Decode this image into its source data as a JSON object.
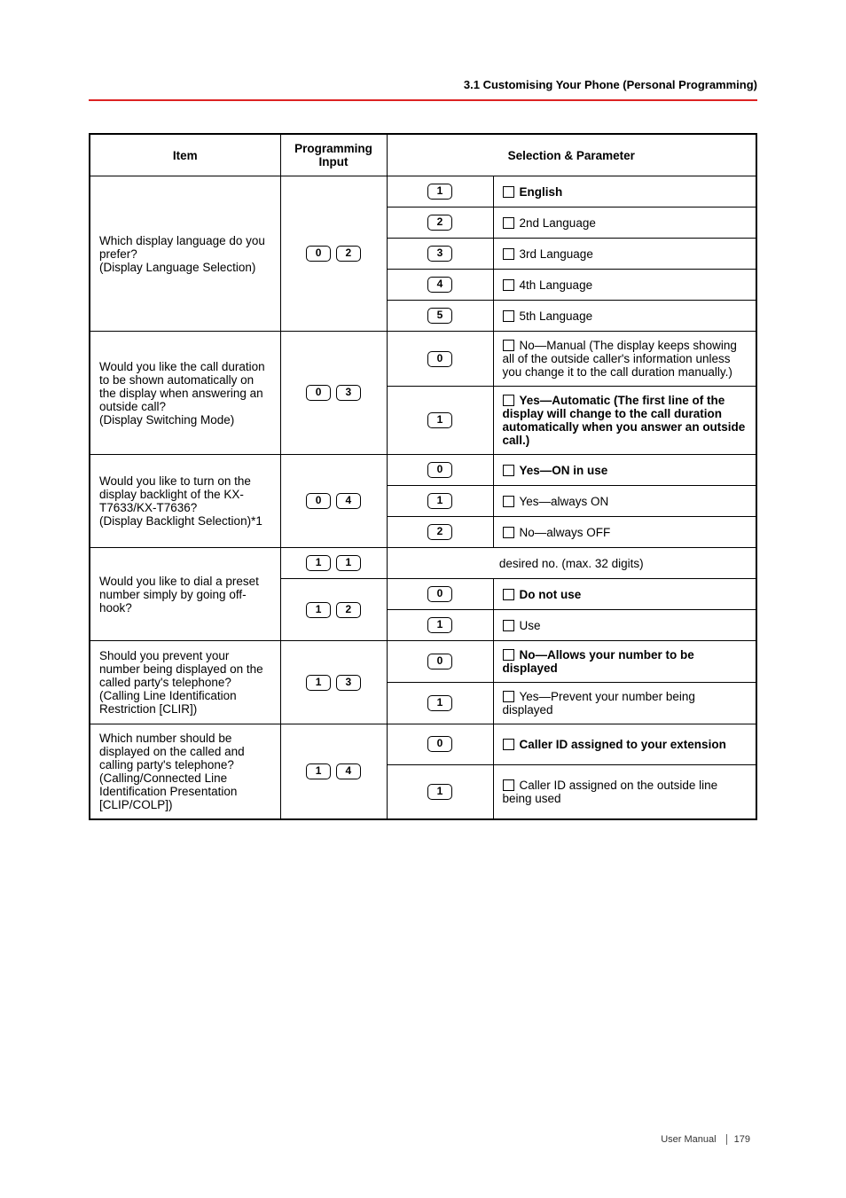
{
  "header": "3.1 Customising Your Phone (Personal Programming)",
  "columns": {
    "item": "Item",
    "prog": "Programming Input",
    "sel": "Selection & Parameter"
  },
  "rows": [
    {
      "item": "Which display language do you prefer?\n(Display Language Selection)",
      "prog": [
        "0",
        "2"
      ],
      "options": [
        {
          "key": [
            "1"
          ],
          "label": "English",
          "bold": true
        },
        {
          "key": [
            "2"
          ],
          "label": "2nd Language"
        },
        {
          "key": [
            "3"
          ],
          "label": "3rd Language"
        },
        {
          "key": [
            "4"
          ],
          "label": "4th Language"
        },
        {
          "key": [
            "5"
          ],
          "label": "5th Language"
        }
      ]
    },
    {
      "item": "Would you like the call duration to be shown automatically on the display when answering an outside call?\n(Display Switching Mode)",
      "prog": [
        "0",
        "3"
      ],
      "options": [
        {
          "key": [
            "0"
          ],
          "label": "No—Manual (The display keeps showing all of the outside caller's information unless you change it to the call duration manually.)"
        },
        {
          "key": [
            "1"
          ],
          "label": "Yes—Automatic (The first line of the display will change to the call duration automatically when you answer an outside call.)",
          "bold": true
        }
      ]
    },
    {
      "item": "Would you like to turn on the display backlight of the KX-T7633/KX-T7636?\n(Display Backlight Selection)*1",
      "prog": [
        "0",
        "4"
      ],
      "options": [
        {
          "key": [
            "0"
          ],
          "label": "Yes—ON in use",
          "bold": true
        },
        {
          "key": [
            "1"
          ],
          "label": "Yes—always ON"
        },
        {
          "key": [
            "2"
          ],
          "label": "No—always OFF"
        }
      ]
    },
    {
      "item": "Would you like to dial a preset number simply by going off-hook?",
      "subrows": [
        {
          "prog": [
            "1",
            "1"
          ],
          "centered": "desired no. (max. 32 digits)"
        },
        {
          "prog": [
            "1",
            "2"
          ],
          "options": [
            {
              "key": [
                "0"
              ],
              "label": "Do not use",
              "bold": true
            },
            {
              "key": [
                "1"
              ],
              "label": "Use"
            }
          ]
        }
      ]
    },
    {
      "item": "Should you prevent your number being displayed on the called party's telephone?\n(Calling Line Identification Restriction [CLIR])",
      "prog": [
        "1",
        "3"
      ],
      "options": [
        {
          "key": [
            "0"
          ],
          "label": "No—Allows your number to be displayed",
          "bold": true
        },
        {
          "key": [
            "1"
          ],
          "label": "Yes—Prevent your number being displayed"
        }
      ]
    },
    {
      "item": "Which number should be displayed on the called and calling party's telephone?\n(Calling/Connected Line Identification Presentation [CLIP/COLP])",
      "prog": [
        "1",
        "4"
      ],
      "options": [
        {
          "key": [
            "0"
          ],
          "label": "Caller ID assigned to your extension",
          "bold": true
        },
        {
          "key": [
            "1"
          ],
          "label": "Caller ID assigned on the outside line being used"
        }
      ]
    }
  ],
  "footer": {
    "label": "User Manual",
    "page": "179"
  }
}
